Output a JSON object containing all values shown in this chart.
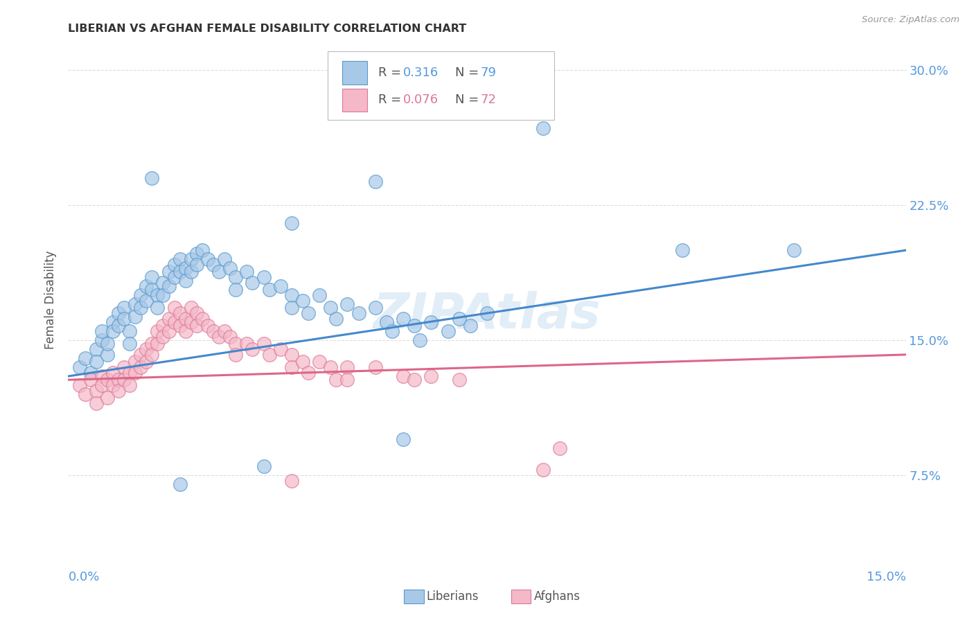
{
  "title": "LIBERIAN VS AFGHAN FEMALE DISABILITY CORRELATION CHART",
  "source": "Source: ZipAtlas.com",
  "ylabel": "Female Disability",
  "xmin": 0.0,
  "xmax": 0.15,
  "ymin": 0.03,
  "ymax": 0.315,
  "yticks": [
    0.075,
    0.15,
    0.225,
    0.3
  ],
  "ytick_labels": [
    "7.5%",
    "15.0%",
    "22.5%",
    "30.0%"
  ],
  "watermark": "ZIPAtlas",
  "liberian_color": "#a8c8e8",
  "afghan_color": "#f4b8c8",
  "liberian_edge_color": "#5599cc",
  "afghan_edge_color": "#dd7799",
  "liberian_line_color": "#4488cc",
  "afghan_line_color": "#dd6688",
  "right_axis_color": "#5599dd",
  "liberian_scatter": [
    [
      0.002,
      0.135
    ],
    [
      0.003,
      0.14
    ],
    [
      0.004,
      0.132
    ],
    [
      0.005,
      0.145
    ],
    [
      0.005,
      0.138
    ],
    [
      0.006,
      0.15
    ],
    [
      0.006,
      0.155
    ],
    [
      0.007,
      0.142
    ],
    [
      0.007,
      0.148
    ],
    [
      0.008,
      0.16
    ],
    [
      0.008,
      0.155
    ],
    [
      0.009,
      0.165
    ],
    [
      0.009,
      0.158
    ],
    [
      0.01,
      0.168
    ],
    [
      0.01,
      0.162
    ],
    [
      0.011,
      0.155
    ],
    [
      0.011,
      0.148
    ],
    [
      0.012,
      0.17
    ],
    [
      0.012,
      0.163
    ],
    [
      0.013,
      0.175
    ],
    [
      0.013,
      0.168
    ],
    [
      0.014,
      0.18
    ],
    [
      0.014,
      0.172
    ],
    [
      0.015,
      0.185
    ],
    [
      0.015,
      0.178
    ],
    [
      0.016,
      0.175
    ],
    [
      0.016,
      0.168
    ],
    [
      0.017,
      0.182
    ],
    [
      0.017,
      0.175
    ],
    [
      0.018,
      0.188
    ],
    [
      0.018,
      0.18
    ],
    [
      0.019,
      0.192
    ],
    [
      0.019,
      0.185
    ],
    [
      0.02,
      0.195
    ],
    [
      0.02,
      0.188
    ],
    [
      0.021,
      0.19
    ],
    [
      0.021,
      0.183
    ],
    [
      0.022,
      0.195
    ],
    [
      0.022,
      0.188
    ],
    [
      0.023,
      0.198
    ],
    [
      0.023,
      0.192
    ],
    [
      0.024,
      0.2
    ],
    [
      0.025,
      0.195
    ],
    [
      0.026,
      0.192
    ],
    [
      0.027,
      0.188
    ],
    [
      0.028,
      0.195
    ],
    [
      0.029,
      0.19
    ],
    [
      0.03,
      0.185
    ],
    [
      0.03,
      0.178
    ],
    [
      0.032,
      0.188
    ],
    [
      0.033,
      0.182
    ],
    [
      0.035,
      0.185
    ],
    [
      0.036,
      0.178
    ],
    [
      0.038,
      0.18
    ],
    [
      0.04,
      0.175
    ],
    [
      0.04,
      0.168
    ],
    [
      0.042,
      0.172
    ],
    [
      0.043,
      0.165
    ],
    [
      0.045,
      0.175
    ],
    [
      0.047,
      0.168
    ],
    [
      0.048,
      0.162
    ],
    [
      0.05,
      0.17
    ],
    [
      0.052,
      0.165
    ],
    [
      0.055,
      0.168
    ],
    [
      0.057,
      0.16
    ],
    [
      0.058,
      0.155
    ],
    [
      0.06,
      0.162
    ],
    [
      0.062,
      0.158
    ],
    [
      0.063,
      0.15
    ],
    [
      0.065,
      0.16
    ],
    [
      0.068,
      0.155
    ],
    [
      0.07,
      0.162
    ],
    [
      0.072,
      0.158
    ],
    [
      0.075,
      0.165
    ],
    [
      0.015,
      0.24
    ],
    [
      0.04,
      0.215
    ],
    [
      0.055,
      0.238
    ],
    [
      0.085,
      0.268
    ],
    [
      0.11,
      0.2
    ],
    [
      0.13,
      0.2
    ],
    [
      0.02,
      0.07
    ],
    [
      0.035,
      0.08
    ],
    [
      0.06,
      0.095
    ]
  ],
  "afghan_scatter": [
    [
      0.002,
      0.125
    ],
    [
      0.003,
      0.12
    ],
    [
      0.004,
      0.128
    ],
    [
      0.005,
      0.122
    ],
    [
      0.005,
      0.115
    ],
    [
      0.006,
      0.13
    ],
    [
      0.006,
      0.125
    ],
    [
      0.007,
      0.118
    ],
    [
      0.007,
      0.128
    ],
    [
      0.008,
      0.132
    ],
    [
      0.008,
      0.125
    ],
    [
      0.009,
      0.128
    ],
    [
      0.009,
      0.122
    ],
    [
      0.01,
      0.135
    ],
    [
      0.01,
      0.128
    ],
    [
      0.011,
      0.132
    ],
    [
      0.011,
      0.125
    ],
    [
      0.012,
      0.138
    ],
    [
      0.012,
      0.132
    ],
    [
      0.013,
      0.142
    ],
    [
      0.013,
      0.135
    ],
    [
      0.014,
      0.145
    ],
    [
      0.014,
      0.138
    ],
    [
      0.015,
      0.148
    ],
    [
      0.015,
      0.142
    ],
    [
      0.016,
      0.155
    ],
    [
      0.016,
      0.148
    ],
    [
      0.017,
      0.158
    ],
    [
      0.017,
      0.152
    ],
    [
      0.018,
      0.162
    ],
    [
      0.018,
      0.155
    ],
    [
      0.019,
      0.168
    ],
    [
      0.019,
      0.16
    ],
    [
      0.02,
      0.165
    ],
    [
      0.02,
      0.158
    ],
    [
      0.021,
      0.162
    ],
    [
      0.021,
      0.155
    ],
    [
      0.022,
      0.168
    ],
    [
      0.022,
      0.16
    ],
    [
      0.023,
      0.165
    ],
    [
      0.023,
      0.158
    ],
    [
      0.024,
      0.162
    ],
    [
      0.025,
      0.158
    ],
    [
      0.026,
      0.155
    ],
    [
      0.027,
      0.152
    ],
    [
      0.028,
      0.155
    ],
    [
      0.029,
      0.152
    ],
    [
      0.03,
      0.148
    ],
    [
      0.03,
      0.142
    ],
    [
      0.032,
      0.148
    ],
    [
      0.033,
      0.145
    ],
    [
      0.035,
      0.148
    ],
    [
      0.036,
      0.142
    ],
    [
      0.038,
      0.145
    ],
    [
      0.04,
      0.142
    ],
    [
      0.04,
      0.135
    ],
    [
      0.042,
      0.138
    ],
    [
      0.043,
      0.132
    ],
    [
      0.045,
      0.138
    ],
    [
      0.047,
      0.135
    ],
    [
      0.048,
      0.128
    ],
    [
      0.05,
      0.135
    ],
    [
      0.05,
      0.128
    ],
    [
      0.055,
      0.135
    ],
    [
      0.06,
      0.13
    ],
    [
      0.062,
      0.128
    ],
    [
      0.065,
      0.13
    ],
    [
      0.07,
      0.128
    ],
    [
      0.085,
      0.078
    ],
    [
      0.088,
      0.09
    ],
    [
      0.04,
      0.072
    ]
  ],
  "liberian_trend_x": [
    0.0,
    0.15
  ],
  "liberian_trend_y": [
    0.13,
    0.2
  ],
  "afghan_trend_x": [
    0.0,
    0.15
  ],
  "afghan_trend_y": [
    0.128,
    0.142
  ],
  "background_color": "#ffffff",
  "grid_color": "#dddddd"
}
